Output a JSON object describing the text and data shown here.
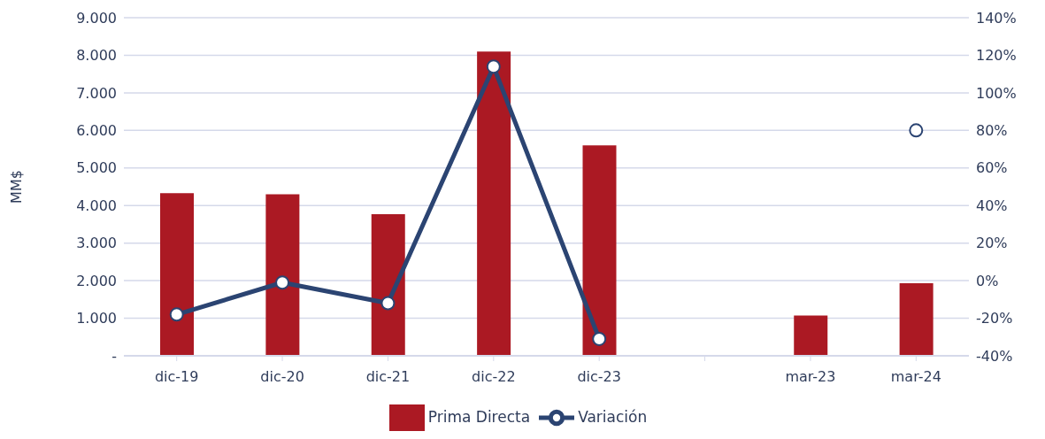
{
  "chart_data": {
    "type": "bar",
    "ylabel": "MM$",
    "categories": [
      "dic-19",
      "dic-20",
      "dic-21",
      "dic-22",
      "dic-23",
      null,
      "mar-23",
      "mar-24"
    ],
    "series": [
      {
        "name": "Prima Directa",
        "color": "#ab1923",
        "values": [
          4330,
          4300,
          3770,
          8100,
          5600,
          null,
          1070,
          1930
        ]
      },
      {
        "name": "Variación",
        "type": "line",
        "axis": "y2",
        "color": "#2b4472",
        "values": [
          -18,
          -1,
          -12,
          114,
          -31,
          null,
          null,
          80
        ]
      }
    ],
    "ylim": [
      0,
      9000
    ],
    "yticks": [
      {
        "value": 0,
        "label": "-"
      },
      {
        "value": 1000,
        "label": "1.000"
      },
      {
        "value": 2000,
        "label": "2.000"
      },
      {
        "value": 3000,
        "label": "3.000"
      },
      {
        "value": 4000,
        "label": "4.000"
      },
      {
        "value": 5000,
        "label": "5.000"
      },
      {
        "value": 6000,
        "label": "6.000"
      },
      {
        "value": 7000,
        "label": "7.000"
      },
      {
        "value": 8000,
        "label": "8.000"
      },
      {
        "value": 9000,
        "label": "9.000"
      }
    ],
    "y2lim": [
      -40,
      140
    ],
    "y2ticks": [
      {
        "value": -40,
        "label": "-40%"
      },
      {
        "value": -20,
        "label": "-20%"
      },
      {
        "value": 0,
        "label": "0%"
      },
      {
        "value": 20,
        "label": "20%"
      },
      {
        "value": 40,
        "label": "40%"
      },
      {
        "value": 60,
        "label": "60%"
      },
      {
        "value": 80,
        "label": "80%"
      },
      {
        "value": 100,
        "label": "100%"
      },
      {
        "value": 120,
        "label": "120%"
      },
      {
        "value": 140,
        "label": "140%"
      }
    ],
    "grid": "y",
    "legend": "bottom",
    "marker": "circle"
  }
}
